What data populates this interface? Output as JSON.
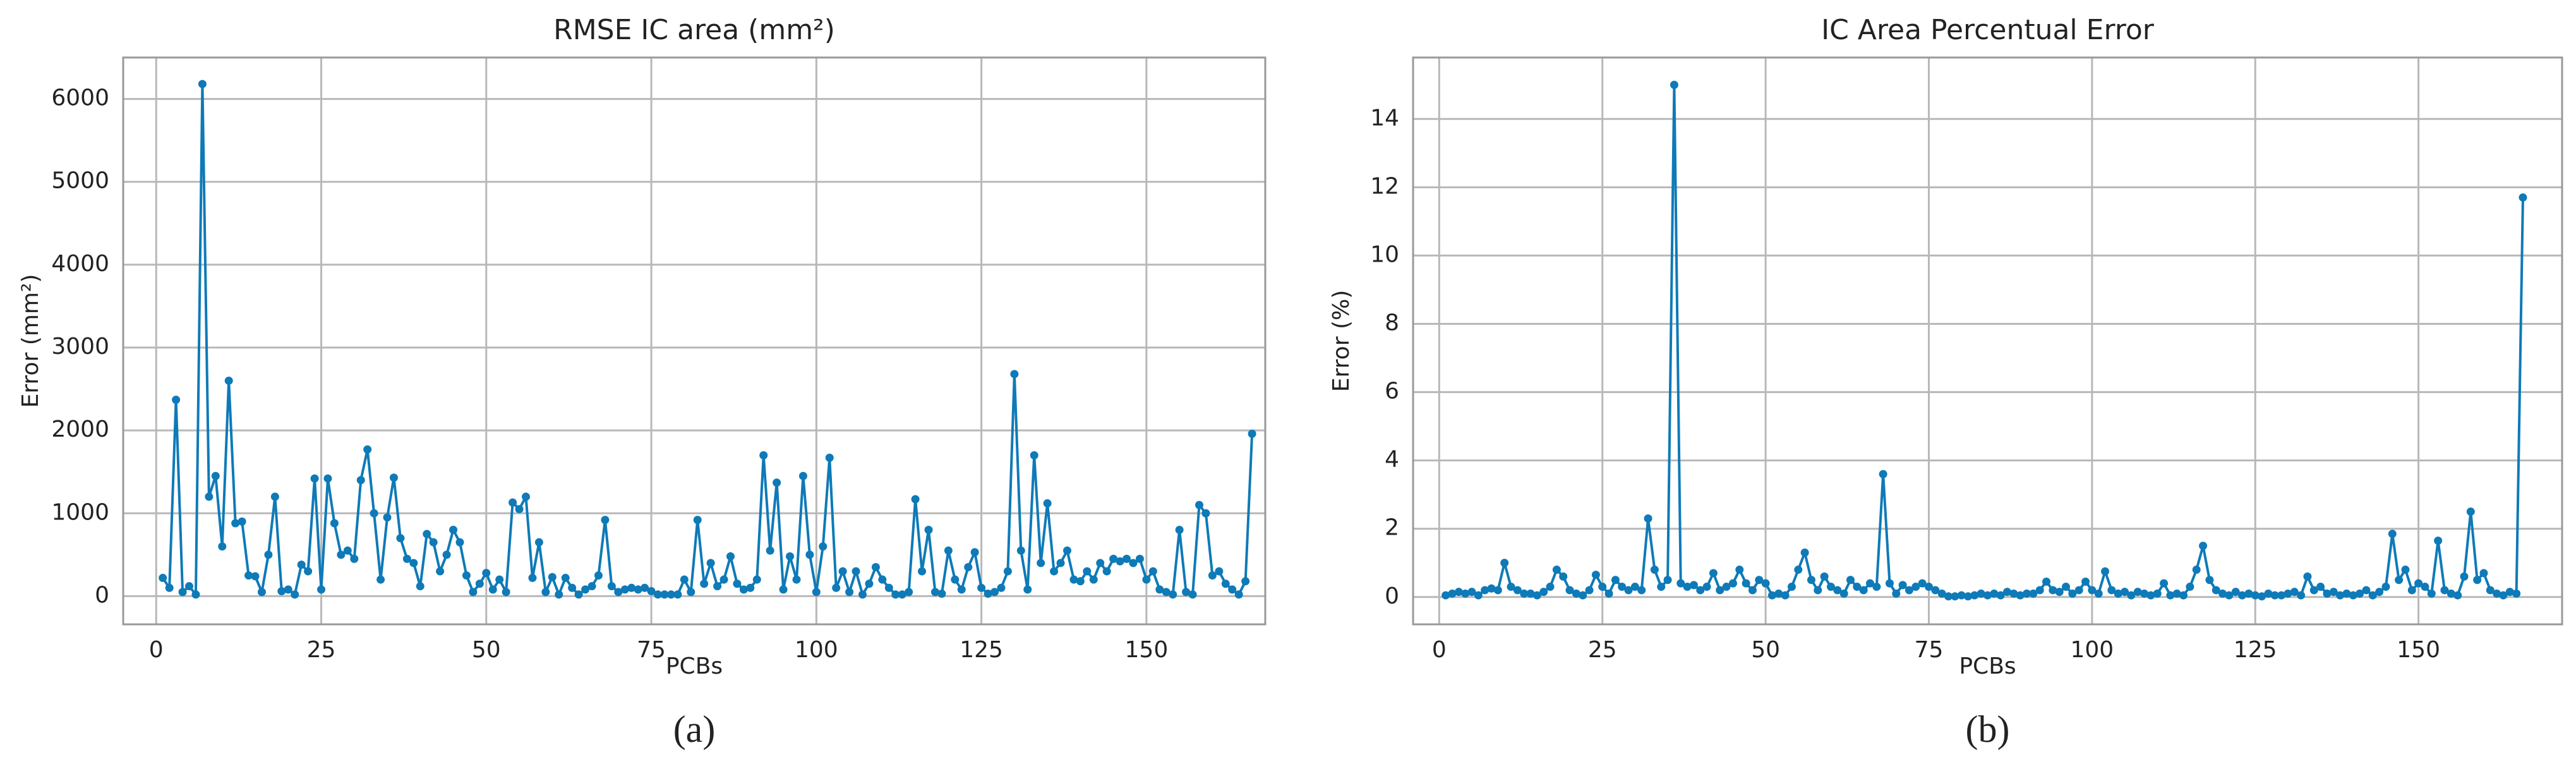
{
  "chart_data": [
    {
      "type": "line",
      "title": "RMSE IC area (mm²)",
      "xlabel": "PCBs",
      "ylabel": "Error (mm²)",
      "caption": "(a)",
      "color": "#0e7ab8",
      "grid": true,
      "xlim": [
        -5,
        168
      ],
      "ylim": [
        -340,
        6500
      ],
      "xticks": [
        0,
        25,
        50,
        75,
        100,
        125,
        150
      ],
      "yticks": [
        0,
        1000,
        2000,
        3000,
        4000,
        5000,
        6000
      ],
      "x": [
        1,
        2,
        3,
        4,
        5,
        6,
        7,
        8,
        9,
        10,
        11,
        12,
        13,
        14,
        15,
        16,
        17,
        18,
        19,
        20,
        21,
        22,
        23,
        24,
        25,
        26,
        27,
        28,
        29,
        30,
        31,
        32,
        33,
        34,
        35,
        36,
        37,
        38,
        39,
        40,
        41,
        42,
        43,
        44,
        45,
        46,
        47,
        48,
        49,
        50,
        51,
        52,
        53,
        54,
        55,
        56,
        57,
        58,
        59,
        60,
        61,
        62,
        63,
        64,
        65,
        66,
        67,
        68,
        69,
        70,
        71,
        72,
        73,
        74,
        75,
        76,
        77,
        78,
        79,
        80,
        81,
        82,
        83,
        84,
        85,
        86,
        87,
        88,
        89,
        90,
        91,
        92,
        93,
        94,
        95,
        96,
        97,
        98,
        99,
        100,
        101,
        102,
        103,
        104,
        105,
        106,
        107,
        108,
        109,
        110,
        111,
        112,
        113,
        114,
        115,
        116,
        117,
        118,
        119,
        120,
        121,
        122,
        123,
        124,
        125,
        126,
        127,
        128,
        129,
        130,
        131,
        132,
        133,
        134,
        135,
        136,
        137,
        138,
        139,
        140,
        141,
        142,
        143,
        144,
        145,
        146,
        147,
        148,
        149,
        150,
        151,
        152,
        153,
        154,
        155,
        156,
        157,
        158,
        159,
        160,
        161,
        162,
        163,
        164,
        165,
        166
      ],
      "values": [
        220,
        100,
        2370,
        50,
        120,
        20,
        6180,
        1200,
        1450,
        600,
        2600,
        880,
        900,
        250,
        240,
        50,
        500,
        1200,
        60,
        80,
        20,
        380,
        300,
        1420,
        80,
        1420,
        880,
        500,
        550,
        450,
        1400,
        1770,
        1000,
        200,
        950,
        1430,
        700,
        450,
        400,
        120,
        750,
        650,
        300,
        500,
        800,
        650,
        250,
        50,
        150,
        280,
        80,
        200,
        50,
        1130,
        1050,
        1200,
        220,
        650,
        50,
        230,
        20,
        220,
        100,
        20,
        80,
        120,
        250,
        920,
        120,
        50,
        80,
        100,
        80,
        100,
        60,
        20,
        20,
        20,
        20,
        200,
        50,
        920,
        150,
        400,
        120,
        200,
        480,
        150,
        80,
        100,
        200,
        1700,
        550,
        1370,
        80,
        480,
        200,
        1450,
        500,
        50,
        600,
        1670,
        100,
        300,
        50,
        300,
        20,
        150,
        350,
        200,
        100,
        20,
        20,
        50,
        1170,
        300,
        800,
        50,
        30,
        550,
        200,
        80,
        350,
        530,
        100,
        30,
        50,
        100,
        300,
        2680,
        550,
        80,
        1700,
        400,
        1120,
        300,
        400,
        550,
        200,
        180,
        300,
        200,
        400,
        300,
        450,
        420,
        450,
        400,
        450,
        200,
        300,
        80,
        50,
        20,
        800,
        50,
        20,
        1100,
        1000,
        250,
        300,
        150,
        80,
        20,
        180,
        1960
      ]
    },
    {
      "type": "line",
      "title": "IC Area Percentual Error",
      "xlabel": "PCBs",
      "ylabel": "Error (%)",
      "caption": "(b)",
      "color": "#0e7ab8",
      "grid": true,
      "xlim": [
        -4,
        172
      ],
      "ylim": [
        -0.8,
        15.8
      ],
      "xticks": [
        0,
        25,
        50,
        75,
        100,
        125,
        150
      ],
      "yticks": [
        0,
        2,
        4,
        6,
        8,
        10,
        12,
        14
      ],
      "x": [
        1,
        2,
        3,
        4,
        5,
        6,
        7,
        8,
        9,
        10,
        11,
        12,
        13,
        14,
        15,
        16,
        17,
        18,
        19,
        20,
        21,
        22,
        23,
        24,
        25,
        26,
        27,
        28,
        29,
        30,
        31,
        32,
        33,
        34,
        35,
        36,
        37,
        38,
        39,
        40,
        41,
        42,
        43,
        44,
        45,
        46,
        47,
        48,
        49,
        50,
        51,
        52,
        53,
        54,
        55,
        56,
        57,
        58,
        59,
        60,
        61,
        62,
        63,
        64,
        65,
        66,
        67,
        68,
        69,
        70,
        71,
        72,
        73,
        74,
        75,
        76,
        77,
        78,
        79,
        80,
        81,
        82,
        83,
        84,
        85,
        86,
        87,
        88,
        89,
        90,
        91,
        92,
        93,
        94,
        95,
        96,
        97,
        98,
        99,
        100,
        101,
        102,
        103,
        104,
        105,
        106,
        107,
        108,
        109,
        110,
        111,
        112,
        113,
        114,
        115,
        116,
        117,
        118,
        119,
        120,
        121,
        122,
        123,
        124,
        125,
        126,
        127,
        128,
        129,
        130,
        131,
        132,
        133,
        134,
        135,
        136,
        137,
        138,
        139,
        140,
        141,
        142,
        143,
        144,
        145,
        146,
        147,
        148,
        149,
        150,
        151,
        152,
        153,
        154,
        155,
        156,
        157,
        158,
        159,
        160,
        161,
        162,
        163,
        164,
        165,
        166
      ],
      "values": [
        0.05,
        0.1,
        0.15,
        0.1,
        0.15,
        0.05,
        0.2,
        0.25,
        0.2,
        1.0,
        0.3,
        0.2,
        0.1,
        0.1,
        0.05,
        0.15,
        0.3,
        0.8,
        0.6,
        0.2,
        0.1,
        0.05,
        0.2,
        0.65,
        0.3,
        0.1,
        0.5,
        0.3,
        0.2,
        0.3,
        0.2,
        2.3,
        0.8,
        0.3,
        0.5,
        15.0,
        0.4,
        0.3,
        0.35,
        0.2,
        0.3,
        0.7,
        0.2,
        0.3,
        0.4,
        0.8,
        0.4,
        0.2,
        0.5,
        0.4,
        0.05,
        0.1,
        0.05,
        0.3,
        0.8,
        1.3,
        0.5,
        0.2,
        0.6,
        0.3,
        0.2,
        0.1,
        0.5,
        0.3,
        0.2,
        0.4,
        0.3,
        3.6,
        0.4,
        0.1,
        0.35,
        0.2,
        0.3,
        0.4,
        0.3,
        0.2,
        0.1,
        0.02,
        0.02,
        0.05,
        0.02,
        0.05,
        0.1,
        0.05,
        0.1,
        0.05,
        0.15,
        0.1,
        0.05,
        0.1,
        0.1,
        0.2,
        0.45,
        0.2,
        0.15,
        0.3,
        0.1,
        0.2,
        0.45,
        0.2,
        0.1,
        0.75,
        0.2,
        0.1,
        0.15,
        0.05,
        0.15,
        0.1,
        0.05,
        0.1,
        0.4,
        0.05,
        0.1,
        0.05,
        0.3,
        0.8,
        1.5,
        0.5,
        0.2,
        0.1,
        0.05,
        0.15,
        0.05,
        0.1,
        0.05,
        0.02,
        0.1,
        0.05,
        0.05,
        0.1,
        0.15,
        0.05,
        0.6,
        0.2,
        0.3,
        0.1,
        0.15,
        0.05,
        0.1,
        0.05,
        0.1,
        0.2,
        0.05,
        0.15,
        0.3,
        1.85,
        0.5,
        0.8,
        0.2,
        0.4,
        0.3,
        0.1,
        1.65,
        0.2,
        0.1,
        0.05,
        0.6,
        2.5,
        0.5,
        0.7,
        0.2,
        0.1,
        0.05,
        0.15,
        0.1,
        11.7
      ]
    }
  ]
}
